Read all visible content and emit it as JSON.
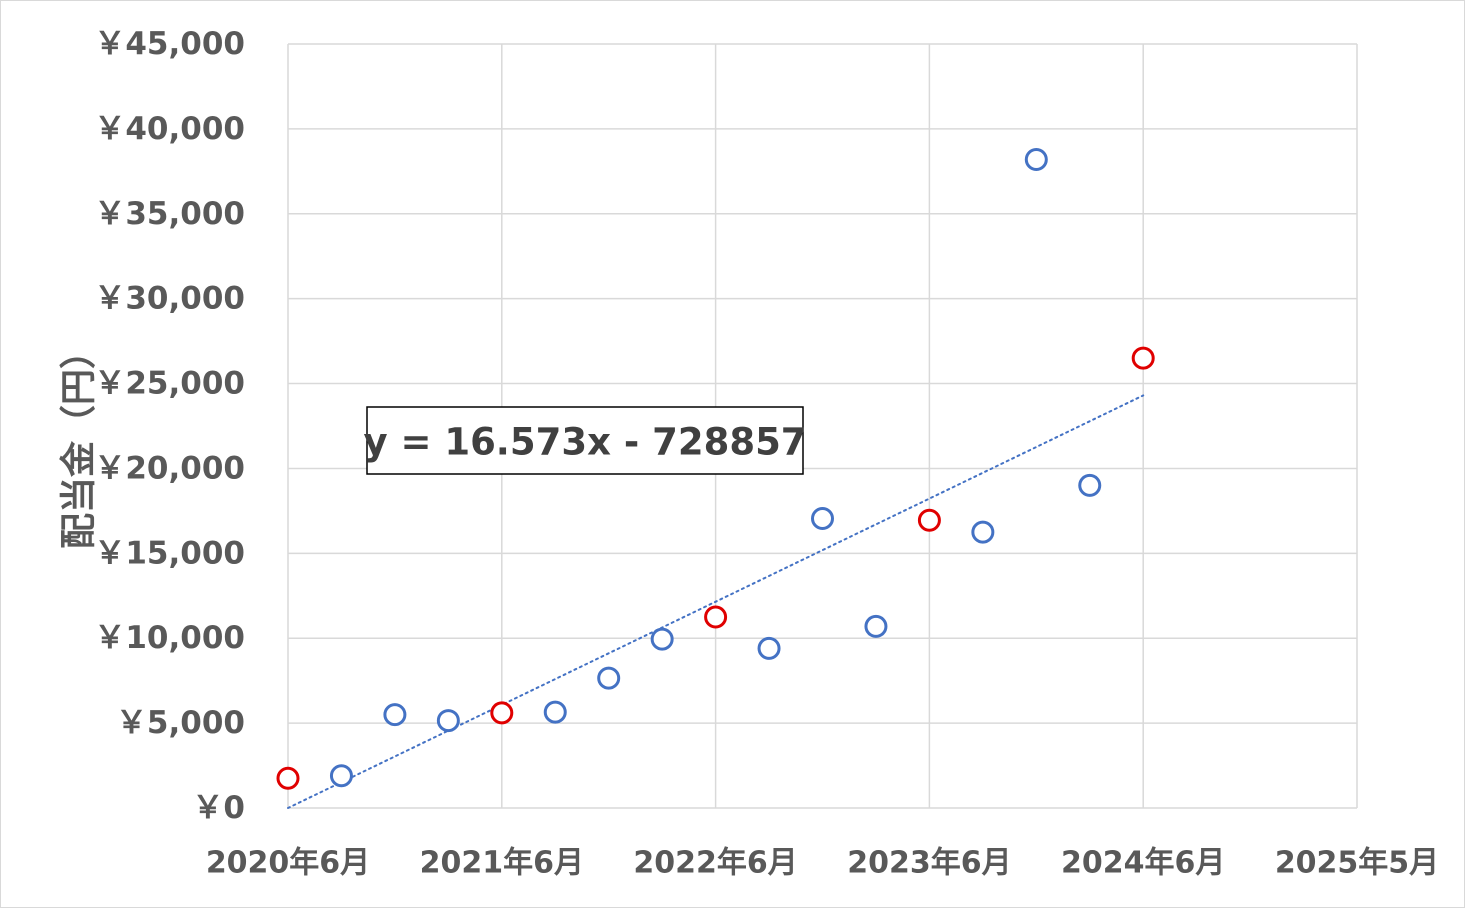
{
  "chart_data": {
    "type": "scatter",
    "ylabel": "配当金（円）",
    "xlabel": "",
    "x_ticks": [
      "2020年6月",
      "2021年6月",
      "2022年6月",
      "2023年6月",
      "2024年6月",
      "2025年5月"
    ],
    "y_ticks": [
      "￥0",
      "￥5,000",
      "￥10,000",
      "￥15,000",
      "￥20,000",
      "￥25,000",
      "￥30,000",
      "￥35,000",
      "￥40,000",
      "￥45,000"
    ],
    "ylim": [
      0,
      45000
    ],
    "xlim": [
      "2020-06",
      "2025-05"
    ],
    "grid": true,
    "legend": "none",
    "series": [
      {
        "color": "#e00000",
        "points": [
          {
            "x": "2020-06",
            "y": 1750
          },
          {
            "x": "2021-06",
            "y": 5600
          },
          {
            "x": "2022-06",
            "y": 11250
          },
          {
            "x": "2023-06",
            "y": 16950
          },
          {
            "x": "2024-06",
            "y": 26500
          }
        ]
      },
      {
        "color": "#4472c4",
        "points": [
          {
            "x": "2020-09",
            "y": 1900
          },
          {
            "x": "2020-12",
            "y": 5500
          },
          {
            "x": "2021-03",
            "y": 5150
          },
          {
            "x": "2021-09",
            "y": 5650
          },
          {
            "x": "2021-12",
            "y": 7650
          },
          {
            "x": "2022-03",
            "y": 9950
          },
          {
            "x": "2022-09",
            "y": 9400
          },
          {
            "x": "2022-12",
            "y": 17050
          },
          {
            "x": "2023-03",
            "y": 10700
          },
          {
            "x": "2023-09",
            "y": 16250
          },
          {
            "x": "2023-12",
            "y": 38200
          },
          {
            "x": "2024-03",
            "y": 19000
          }
        ]
      }
    ],
    "trendline": {
      "type": "linear",
      "style": "dotted",
      "color": "#4472c4",
      "equation": "y = 16.573x - 728857",
      "from": {
        "x": "2020-06",
        "y": 0
      },
      "to": {
        "x": "2024-06",
        "y": 24300
      }
    }
  }
}
